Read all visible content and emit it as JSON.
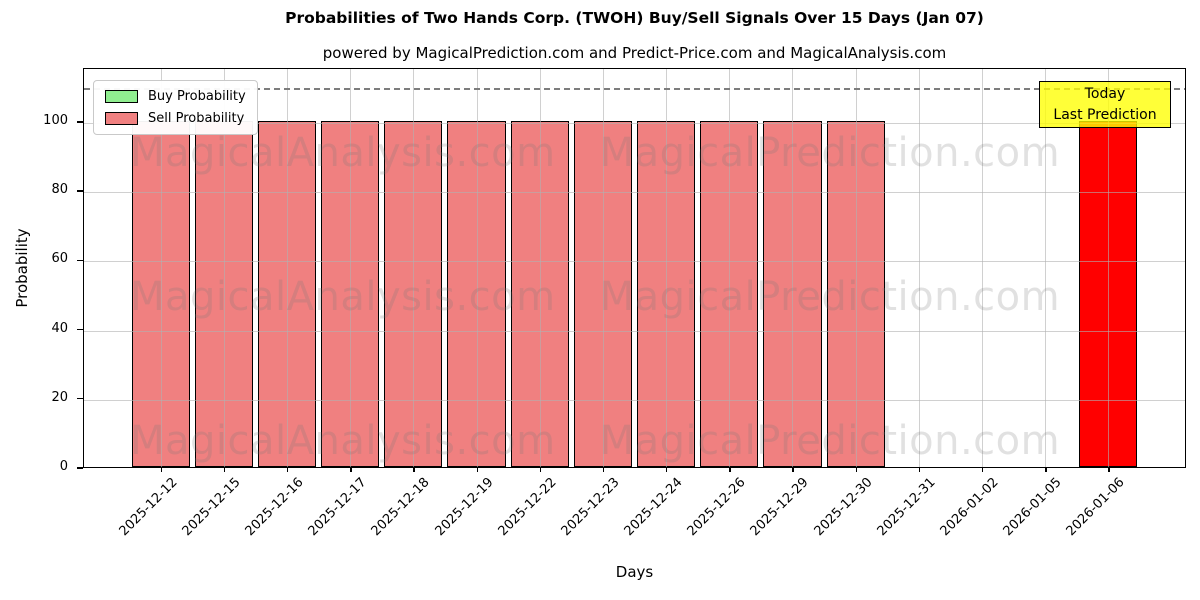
{
  "chart_data": {
    "type": "bar",
    "title": "Probabilities of Two Hands Corp. (TWOH) Buy/Sell Signals Over 15 Days (Jan 07)",
    "subtitle": "powered by MagicalPrediction.com and Predict-Price.com and MagicalAnalysis.com",
    "xlabel": "Days",
    "ylabel": "Probability",
    "ylim": [
      0,
      115.6
    ],
    "yticks": [
      0,
      20,
      40,
      60,
      80,
      100
    ],
    "grid": true,
    "legend_position": "upper left",
    "categories": [
      "2025-12-12",
      "2025-12-15",
      "2025-12-16",
      "2025-12-17",
      "2025-12-18",
      "2025-12-19",
      "2025-12-22",
      "2025-12-23",
      "2025-12-24",
      "2025-12-26",
      "2025-12-29",
      "2025-12-30",
      "2025-12-31",
      "2026-01-02",
      "2026-01-05",
      "2026-01-06"
    ],
    "series": [
      {
        "name": "Buy Probability",
        "color": "#90ee90",
        "values": [
          0,
          0,
          0,
          0,
          0,
          0,
          0,
          0,
          0,
          0,
          0,
          0,
          0,
          0,
          0,
          0
        ]
      },
      {
        "name": "Sell Probability",
        "color": "#f08080",
        "values": [
          100,
          100,
          100,
          100,
          100,
          100,
          100,
          100,
          100,
          100,
          100,
          100,
          0,
          0,
          0,
          100
        ]
      }
    ],
    "highlight": {
      "index": 15,
      "bar_color": "#ff0000",
      "annotation_lines": [
        "Today",
        "Last Prediction"
      ],
      "annotation_bg": "#ffff00",
      "annotation_border": "#000000"
    },
    "threshold_line": {
      "y": 110,
      "color": "#7d7d7d",
      "style": "dashed"
    },
    "watermarks": {
      "left": "MagicalAnalysis.com",
      "right": "MagicalPrediction.com",
      "rows": 3
    }
  }
}
